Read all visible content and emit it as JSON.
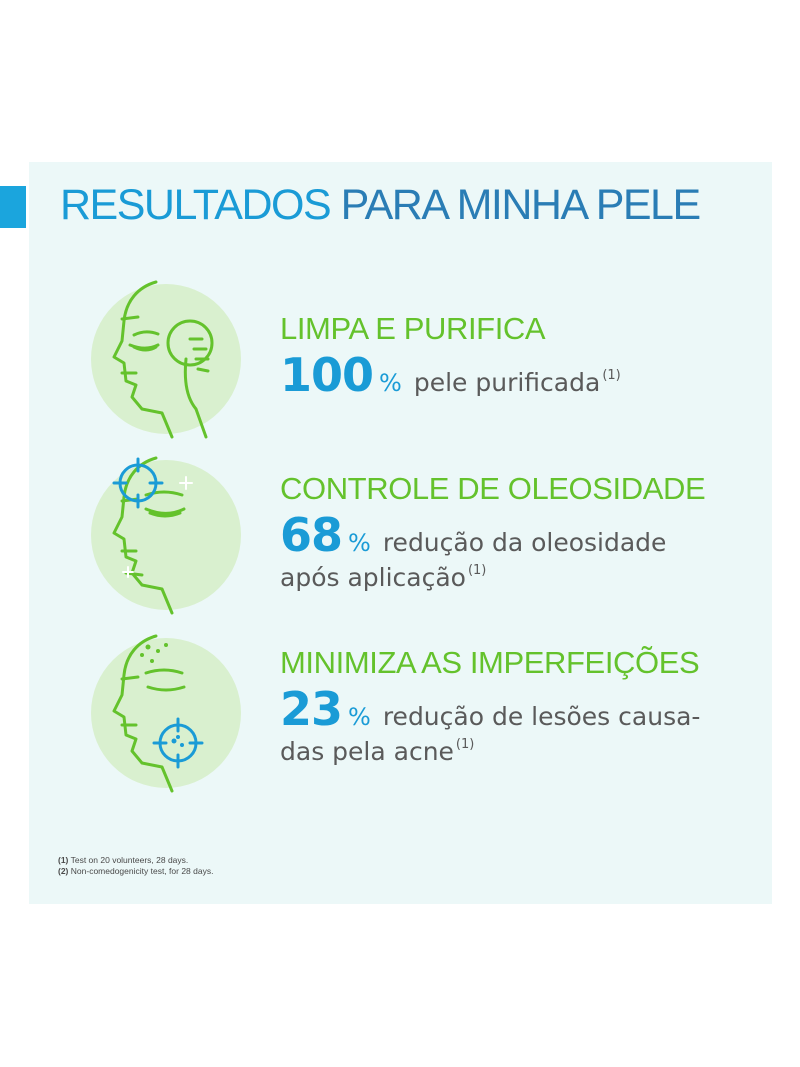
{
  "title": {
    "part1": "RESULTADOS",
    "part2": "PARA MINHA PELE"
  },
  "sections": [
    {
      "heading": "LIMPA E PURIFICA",
      "value": "100",
      "unit": "%",
      "description": "pele purificada",
      "description_line2": "",
      "ref": "(1)",
      "icon": "face-cotton-pad-icon"
    },
    {
      "heading": "CONTROLE DE OLEOSIDADE",
      "value": "68",
      "unit": "%",
      "description": "redução da oleosidade",
      "description_line2": "após aplicação",
      "ref": "(1)",
      "icon": "face-target-forehead-icon"
    },
    {
      "heading": "MINIMIZA AS IMPERFEIÇÕES",
      "value": "23",
      "unit": "%",
      "description": "redução de lesões causa-",
      "description_line2": "das pela acne",
      "ref": "(1)",
      "icon": "face-target-blemish-icon"
    }
  ],
  "footnotes": [
    {
      "label": "(1)",
      "text": "Test on 20 volunteers, 28 days."
    },
    {
      "label": "(2)",
      "text": "Non-comedogenicity test, for 28 days."
    }
  ],
  "colors": {
    "accent": "#1ba5dd",
    "green": "#64c22c",
    "blue": "#1a9bd6",
    "panel": "#ecf8f8"
  }
}
